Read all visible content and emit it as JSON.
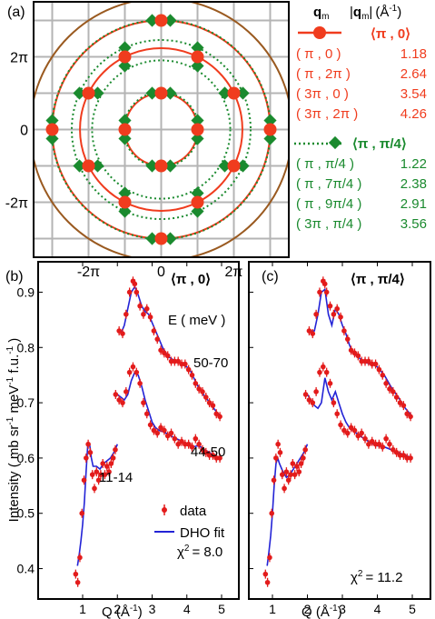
{
  "panel_a": {
    "label": "(a)",
    "ticks": [
      "-2π",
      "0",
      "2π"
    ],
    "colors": {
      "red": "#f03c1e",
      "green": "#1a8a2e",
      "brown": "#9a5a20",
      "grid": "#b4b4b4"
    },
    "legend": {
      "header_q": "q",
      "header_q_sub": "m",
      "header_mag_open": "|",
      "header_mag_q": "q",
      "header_mag_sub": "m",
      "header_mag_close": "|",
      "header_unit": "(Å",
      "header_unit_sup": "-1",
      "header_unit_close": ")",
      "group1": {
        "title": "⟨π , 0⟩",
        "color": "#f03c1e",
        "rows": [
          {
            "q": "( π , 0 )",
            "v": "1.18"
          },
          {
            "q": "( π , 2π )",
            "v": "2.64"
          },
          {
            "q": "( 3π , 0 )",
            "v": "3.54"
          },
          {
            "q": "( 3π , 2π )",
            "v": "4.26"
          }
        ]
      },
      "group2": {
        "title": "⟨π , π/4⟩",
        "color": "#1a8a2e",
        "rows": [
          {
            "q": "( π , π/4 )",
            "v": "1.22"
          },
          {
            "q": "( π , 7π/4 )",
            "v": "2.38"
          },
          {
            "q": "( π , 9π/4 )",
            "v": "2.91"
          },
          {
            "q": "( 3π , π/4 )",
            "v": "3.56"
          }
        ]
      }
    }
  },
  "panel_b": {
    "label": "(b)",
    "title": "⟨π , 0⟩",
    "chi2_base": "χ",
    "chi2_sup": "2",
    "chi2_val": "= 8.0"
  },
  "panel_c": {
    "label": "(c)",
    "title": "⟨π , π/4⟩",
    "chi2_base": "χ",
    "chi2_sup": "2",
    "chi2_val": "= 11.2"
  },
  "lower": {
    "ylabel_pre": "Intensity ( mb sr",
    "ylabel_s1": "-1",
    "ylabel_mid": " meV",
    "ylabel_s2": "-1",
    "ylabel_post": " f.u.",
    "ylabel_s3": "-1",
    "ylabel_end": " )",
    "xlabel_pre": "Q  (Å",
    "xlabel_sup": "-1",
    "xlabel_post": ")",
    "energy_header": "E ( meV )",
    "range_high": "50-70",
    "range_mid": "44-50",
    "range_low": "11-14",
    "legend_data": "data",
    "legend_fit": "DHO fit"
  },
  "chart_data": [
    {
      "type": "scatter",
      "panel": "(a)",
      "xticks": [
        "-2π",
        "0",
        "2π"
      ],
      "yticks": [
        "-2π",
        "0",
        "2π"
      ],
      "xlim": [
        -3.3,
        3.3
      ],
      "ylim": [
        -3.3,
        3.3
      ],
      "grid": true,
      "series": [
        {
          "name": "⟨π , 0⟩",
          "marker": "circle",
          "color": "#f03c1e",
          "points": [
            [
              1,
              0
            ],
            [
              -1,
              0
            ],
            [
              0,
              1
            ],
            [
              0,
              -1
            ],
            [
              1,
              2
            ],
            [
              -1,
              2
            ],
            [
              1,
              -2
            ],
            [
              -1,
              -2
            ],
            [
              2,
              1
            ],
            [
              -2,
              1
            ],
            [
              2,
              -1
            ],
            [
              -2,
              -1
            ],
            [
              3,
              0
            ],
            [
              -3,
              0
            ],
            [
              0,
              3
            ],
            [
              0,
              -3
            ]
          ],
          "circle_radii_q": [
            1.18,
            2.64,
            3.54,
            4.26
          ]
        },
        {
          "name": "⟨π , π/4⟩",
          "marker": "diamond",
          "color": "#1a8a2e",
          "points": [
            [
              1,
              0.25
            ],
            [
              1,
              -0.25
            ],
            [
              -1,
              0.25
            ],
            [
              -1,
              -0.25
            ],
            [
              0.25,
              1
            ],
            [
              -0.25,
              1
            ],
            [
              0.25,
              -1
            ],
            [
              -0.25,
              -1
            ],
            [
              1,
              1.75
            ],
            [
              -1,
              1.75
            ],
            [
              1,
              -1.75
            ],
            [
              -1,
              -1.75
            ],
            [
              1.75,
              1
            ],
            [
              -1.75,
              1
            ],
            [
              1.75,
              -1
            ],
            [
              -1.75,
              -1
            ],
            [
              1,
              2.25
            ],
            [
              -1,
              2.25
            ],
            [
              1,
              -2.25
            ],
            [
              -1,
              -2.25
            ],
            [
              2.25,
              1
            ],
            [
              -2.25,
              1
            ],
            [
              2.25,
              -1
            ],
            [
              -2.25,
              -1
            ],
            [
              3,
              0.25
            ],
            [
              3,
              -0.25
            ],
            [
              -3,
              0.25
            ],
            [
              -3,
              -0.25
            ],
            [
              0.25,
              3
            ],
            [
              -0.25,
              3
            ],
            [
              0.25,
              -3
            ],
            [
              -0.25,
              -3
            ]
          ],
          "circle_radii_q": [
            1.22,
            2.38,
            2.91,
            3.56
          ]
        }
      ]
    },
    {
      "type": "line",
      "panel": "(b)",
      "title": "⟨π , 0⟩",
      "xlabel": "Q (Å-1)",
      "ylabel": "Intensity ( mb sr-1 meV-1 f.u.-1 )",
      "xlim": [
        0.5,
        5.3
      ],
      "ylim": [
        0.345,
        0.955
      ],
      "xticks": [
        1,
        2,
        3,
        4,
        5
      ],
      "yticks": [
        0.4,
        0.5,
        0.6,
        0.7,
        0.8,
        0.9
      ],
      "series": [
        {
          "name": "data",
          "label": "11-14",
          "x": [
            0.8,
            0.86,
            0.92,
            0.98,
            1.04,
            1.1,
            1.16,
            1.22,
            1.28,
            1.34,
            1.4,
            1.46,
            1.52,
            1.58,
            1.64,
            1.7,
            1.76,
            1.82,
            1.88,
            1.94
          ],
          "y": [
            0.39,
            0.375,
            0.42,
            0.5,
            0.56,
            0.6,
            0.625,
            0.61,
            0.57,
            0.545,
            0.575,
            0.56,
            0.57,
            0.59,
            0.57,
            0.585,
            0.575,
            0.59,
            0.6,
            0.615
          ]
        },
        {
          "name": "DHO fit",
          "label": "11-14",
          "x": [
            0.85,
            0.9,
            0.95,
            1.0,
            1.05,
            1.1,
            1.15,
            1.2,
            1.25,
            1.3,
            1.4,
            1.5,
            1.6,
            1.7,
            1.8,
            1.9,
            2.0
          ],
          "y": [
            0.405,
            0.425,
            0.45,
            0.48,
            0.52,
            0.575,
            0.625,
            0.625,
            0.6,
            0.585,
            0.585,
            0.58,
            0.59,
            0.595,
            0.6,
            0.61,
            0.625
          ]
        },
        {
          "name": "data",
          "label": "44-50",
          "x": [
            1.95,
            2.05,
            2.15,
            2.25,
            2.35,
            2.45,
            2.55,
            2.65,
            2.75,
            2.85,
            2.95,
            3.05,
            3.15,
            3.25,
            3.35,
            3.45,
            3.55,
            3.65,
            3.75,
            3.85,
            3.95,
            4.05,
            4.15,
            4.25,
            4.35,
            4.45,
            4.55,
            4.65,
            4.75,
            4.85,
            4.95
          ],
          "y": [
            0.715,
            0.705,
            0.7,
            0.72,
            0.755,
            0.765,
            0.755,
            0.735,
            0.7,
            0.68,
            0.66,
            0.65,
            0.645,
            0.655,
            0.65,
            0.64,
            0.645,
            0.635,
            0.625,
            0.63,
            0.625,
            0.625,
            0.62,
            0.635,
            0.625,
            0.615,
            0.61,
            0.605,
            0.605,
            0.6,
            0.6
          ]
        },
        {
          "name": "DHO fit",
          "label": "44-50",
          "x": [
            2.0,
            2.1,
            2.2,
            2.3,
            2.4,
            2.5,
            2.6,
            2.7,
            2.8,
            2.9,
            3.0,
            3.1,
            3.2,
            3.3,
            3.4,
            3.5,
            3.6,
            3.7,
            3.8,
            3.9,
            4.0,
            4.1,
            4.2,
            4.3,
            4.4,
            4.5,
            4.6,
            4.7,
            4.8,
            4.9,
            5.0
          ],
          "y": [
            0.715,
            0.71,
            0.705,
            0.715,
            0.74,
            0.755,
            0.75,
            0.73,
            0.705,
            0.685,
            0.665,
            0.655,
            0.65,
            0.648,
            0.645,
            0.642,
            0.638,
            0.635,
            0.632,
            0.628,
            0.625,
            0.622,
            0.62,
            0.622,
            0.62,
            0.615,
            0.612,
            0.608,
            0.605,
            0.602,
            0.6
          ]
        },
        {
          "name": "data",
          "label": "50-70",
          "x": [
            2.05,
            2.15,
            2.25,
            2.35,
            2.45,
            2.5,
            2.55,
            2.65,
            2.75,
            2.85,
            2.95,
            3.05,
            3.15,
            3.25,
            3.35,
            3.45,
            3.55,
            3.65,
            3.75,
            3.85,
            3.95,
            4.05,
            4.15,
            4.25,
            4.35,
            4.45,
            4.55,
            4.65,
            4.75,
            4.85,
            4.95
          ],
          "y": [
            0.83,
            0.825,
            0.86,
            0.9,
            0.92,
            0.915,
            0.9,
            0.875,
            0.86,
            0.87,
            0.855,
            0.83,
            0.815,
            0.795,
            0.79,
            0.785,
            0.775,
            0.775,
            0.775,
            0.77,
            0.77,
            0.76,
            0.75,
            0.735,
            0.725,
            0.72,
            0.71,
            0.7,
            0.695,
            0.68,
            0.675
          ]
        },
        {
          "name": "DHO fit",
          "label": "50-70",
          "x": [
            2.1,
            2.2,
            2.3,
            2.4,
            2.5,
            2.6,
            2.7,
            2.8,
            2.9,
            3.0,
            3.1,
            3.2,
            3.3,
            3.4,
            3.5,
            3.6,
            3.7,
            3.8,
            3.9,
            4.0,
            4.1,
            4.2,
            4.3,
            4.4,
            4.5,
            4.6,
            4.7,
            4.8,
            4.9,
            5.0
          ],
          "y": [
            0.825,
            0.84,
            0.87,
            0.9,
            0.91,
            0.895,
            0.875,
            0.865,
            0.86,
            0.845,
            0.83,
            0.815,
            0.8,
            0.79,
            0.782,
            0.778,
            0.776,
            0.772,
            0.768,
            0.765,
            0.758,
            0.745,
            0.732,
            0.722,
            0.713,
            0.705,
            0.697,
            0.688,
            0.68,
            0.675
          ]
        }
      ],
      "annotation": "χ2 = 8.0"
    },
    {
      "type": "line",
      "panel": "(c)",
      "title": "⟨π , π/4⟩",
      "xlabel": "Q (Å-1)",
      "xlim": [
        0.5,
        5.3
      ],
      "ylim": [
        0.345,
        0.955
      ],
      "xticks": [
        1,
        2,
        3,
        4,
        5
      ],
      "series": [
        {
          "name": "data",
          "label": "11-14",
          "x": [
            0.8,
            0.86,
            0.92,
            0.98,
            1.04,
            1.1,
            1.16,
            1.22,
            1.28,
            1.34,
            1.4,
            1.46,
            1.52,
            1.58,
            1.64,
            1.7,
            1.76,
            1.82,
            1.88,
            1.94
          ],
          "y": [
            0.39,
            0.375,
            0.42,
            0.5,
            0.56,
            0.6,
            0.625,
            0.61,
            0.57,
            0.545,
            0.575,
            0.56,
            0.57,
            0.59,
            0.57,
            0.585,
            0.575,
            0.59,
            0.6,
            0.615
          ]
        },
        {
          "name": "DHO fit",
          "label": "11-14",
          "x": [
            0.85,
            0.9,
            0.95,
            1.0,
            1.05,
            1.1,
            1.15,
            1.2,
            1.3,
            1.4,
            1.5,
            1.6,
            1.7,
            1.8,
            1.9,
            2.0
          ],
          "y": [
            0.405,
            0.43,
            0.46,
            0.5,
            0.55,
            0.59,
            0.6,
            0.59,
            0.575,
            0.565,
            0.57,
            0.58,
            0.59,
            0.6,
            0.61,
            0.625
          ]
        },
        {
          "name": "data",
          "label": "44-50",
          "x": [
            1.95,
            2.05,
            2.15,
            2.25,
            2.35,
            2.45,
            2.55,
            2.65,
            2.75,
            2.85,
            2.95,
            3.05,
            3.15,
            3.25,
            3.35,
            3.45,
            3.55,
            3.65,
            3.75,
            3.85,
            3.95,
            4.05,
            4.15,
            4.25,
            4.35,
            4.45,
            4.55,
            4.65,
            4.75,
            4.85,
            4.95
          ],
          "y": [
            0.715,
            0.705,
            0.7,
            0.72,
            0.755,
            0.765,
            0.755,
            0.735,
            0.7,
            0.68,
            0.66,
            0.65,
            0.645,
            0.655,
            0.65,
            0.64,
            0.645,
            0.635,
            0.625,
            0.63,
            0.625,
            0.625,
            0.62,
            0.635,
            0.625,
            0.615,
            0.61,
            0.605,
            0.605,
            0.6,
            0.6
          ]
        },
        {
          "name": "DHO fit",
          "label": "44-50",
          "x": [
            2.0,
            2.1,
            2.2,
            2.3,
            2.4,
            2.5,
            2.6,
            2.7,
            2.8,
            2.9,
            3.0,
            3.1,
            3.2,
            3.3,
            3.4,
            3.5,
            3.6,
            3.7,
            3.8,
            3.9,
            4.0,
            4.2,
            4.4,
            4.6,
            4.8,
            5.0
          ],
          "y": [
            0.715,
            0.705,
            0.695,
            0.69,
            0.7,
            0.745,
            0.72,
            0.705,
            0.72,
            0.7,
            0.68,
            0.665,
            0.655,
            0.65,
            0.645,
            0.64,
            0.636,
            0.632,
            0.628,
            0.625,
            0.622,
            0.62,
            0.615,
            0.61,
            0.605,
            0.6
          ]
        },
        {
          "name": "data",
          "label": "50-70",
          "x": [
            2.05,
            2.15,
            2.25,
            2.35,
            2.45,
            2.5,
            2.55,
            2.65,
            2.75,
            2.85,
            2.95,
            3.05,
            3.15,
            3.25,
            3.35,
            3.45,
            3.55,
            3.65,
            3.75,
            3.85,
            3.95,
            4.05,
            4.15,
            4.25,
            4.35,
            4.45,
            4.55,
            4.65,
            4.75,
            4.85,
            4.95
          ],
          "y": [
            0.83,
            0.825,
            0.86,
            0.9,
            0.92,
            0.915,
            0.9,
            0.875,
            0.86,
            0.87,
            0.855,
            0.83,
            0.815,
            0.795,
            0.79,
            0.785,
            0.775,
            0.775,
            0.775,
            0.77,
            0.77,
            0.76,
            0.75,
            0.735,
            0.725,
            0.72,
            0.71,
            0.7,
            0.695,
            0.68,
            0.675
          ]
        },
        {
          "name": "DHO fit",
          "label": "50-70",
          "x": [
            2.1,
            2.2,
            2.3,
            2.4,
            2.5,
            2.6,
            2.7,
            2.8,
            2.9,
            3.0,
            3.1,
            3.2,
            3.3,
            3.4,
            3.5,
            3.6,
            3.7,
            3.8,
            3.9,
            4.0,
            4.2,
            4.4,
            4.6,
            4.8,
            5.0
          ],
          "y": [
            0.83,
            0.83,
            0.86,
            0.9,
            0.905,
            0.86,
            0.84,
            0.87,
            0.86,
            0.84,
            0.825,
            0.805,
            0.79,
            0.785,
            0.78,
            0.776,
            0.772,
            0.77,
            0.768,
            0.765,
            0.75,
            0.728,
            0.71,
            0.69,
            0.675
          ]
        }
      ],
      "annotation": "χ2 = 11.2"
    }
  ]
}
